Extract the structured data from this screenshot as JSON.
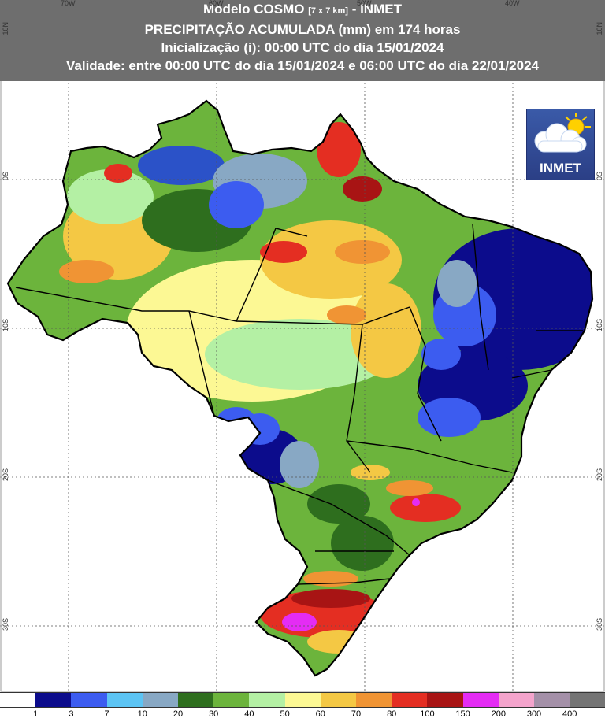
{
  "header": {
    "line1_prefix": "Modelo COSMO",
    "line1_grid": "[7 x 7 km]",
    "line1_suffix": "- INMET",
    "line2": "PRECIPITAÇÃO ACUMULADA (mm) em 174 horas",
    "line3": "Inicialização (i): 00:00 UTC do dia 15/01/2024",
    "line4": "Validade: entre 00:00 UTC do dia 15/01/2024 e 06:00 UTC do dia 22/01/2024"
  },
  "logo": {
    "text": "INMET",
    "icon": "cloud-sun-icon"
  },
  "axes": {
    "lon_labels": [
      "70W",
      "60W",
      "50W",
      "40W"
    ],
    "lat_labels": [
      "10N",
      "0S",
      "10S",
      "20S",
      "30S"
    ]
  },
  "legend": {
    "colors": [
      "#ffffff",
      "#0c0c8c",
      "#3c5cf0",
      "#5cc4f4",
      "#88a8c4",
      "#2e6e1e",
      "#6cb43c",
      "#b4f0a4",
      "#fcf894",
      "#f4c844",
      "#f09434",
      "#e42e22",
      "#a81414",
      "#e42cf4",
      "#f4a4cc",
      "#a490a8",
      "#747474"
    ],
    "labels": [
      "1",
      "3",
      "7",
      "10",
      "20",
      "30",
      "40",
      "50",
      "60",
      "70",
      "80",
      "100",
      "150",
      "200",
      "300",
      "400"
    ]
  }
}
